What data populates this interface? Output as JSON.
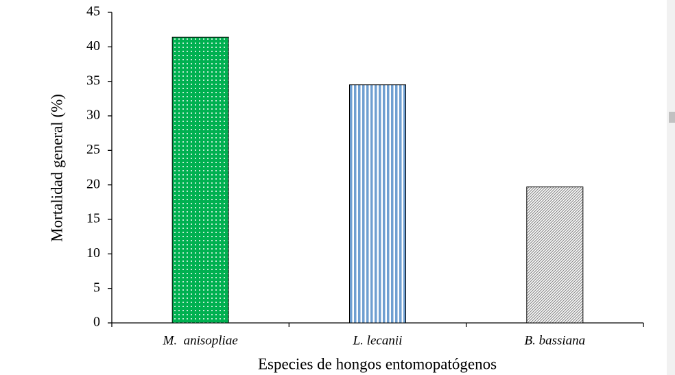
{
  "chart_data": {
    "type": "bar",
    "categories": [
      "M.  anisopliae",
      "L. lecanii",
      "B. bassiana"
    ],
    "values": [
      41.4,
      34.5,
      19.7
    ],
    "colors": [
      "#00b050",
      "#6f9fd1",
      "#8c8c8c"
    ],
    "patterns": [
      "dots",
      "vertical-stripes",
      "diagonal-hatch"
    ],
    "xlabel": "Especies de hongos entomopatógenos",
    "ylabel": "Mortalidad general (%)",
    "ylim": [
      0,
      45
    ],
    "yticks": [
      0,
      5,
      10,
      15,
      20,
      25,
      30,
      35,
      40,
      45
    ],
    "grid": false
  }
}
